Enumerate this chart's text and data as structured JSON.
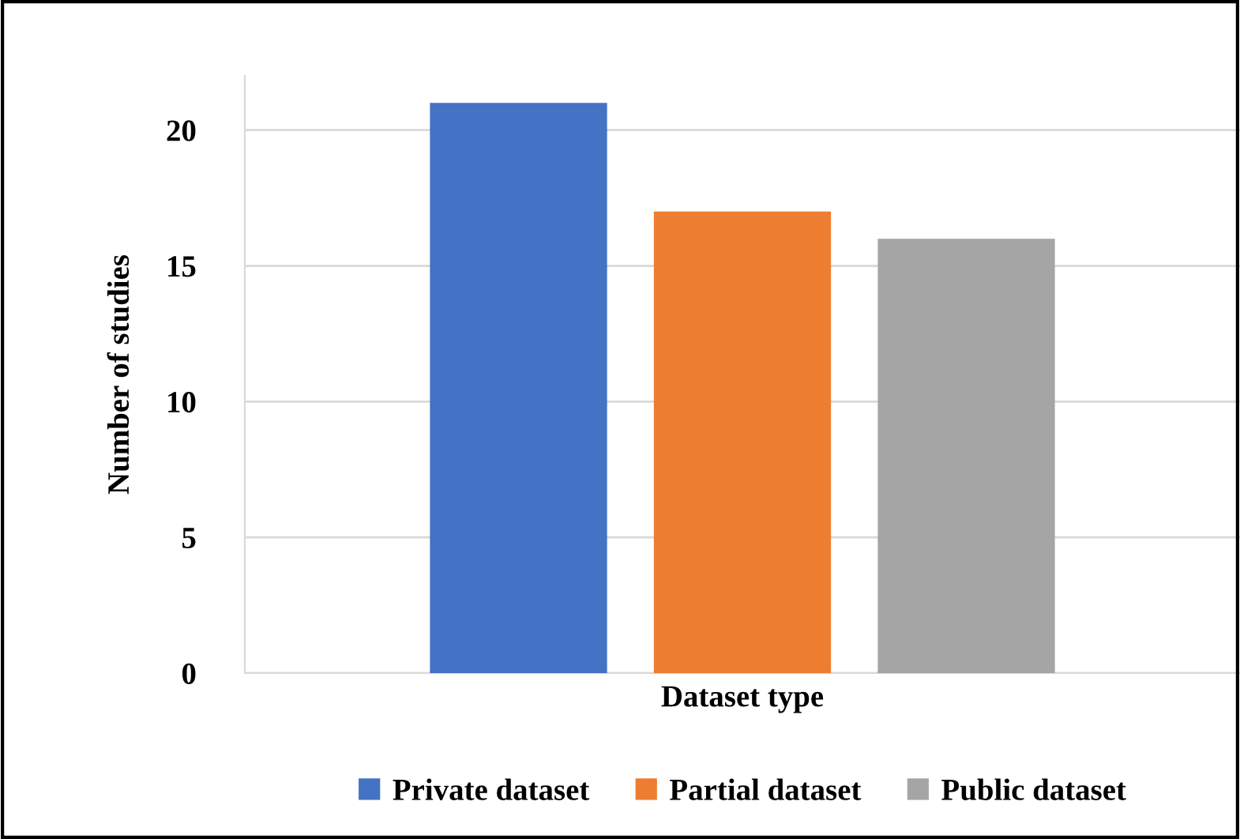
{
  "chart_data": {
    "type": "bar",
    "xlabel": "Dataset type",
    "ylabel": "Number of studies",
    "categories": [
      null
    ],
    "series": [
      {
        "name": "Private dataset",
        "color": "#4472c4",
        "values": [
          21
        ]
      },
      {
        "name": "Partial dataset",
        "color": "#ed7d31",
        "values": [
          17
        ]
      },
      {
        "name": "Public dataset",
        "color": "#a5a5a5",
        "values": [
          16
        ]
      }
    ],
    "ylim": [
      0,
      22
    ],
    "yticks": [
      0,
      5,
      10,
      15,
      20
    ],
    "grid": "y",
    "legend": "bottom"
  }
}
